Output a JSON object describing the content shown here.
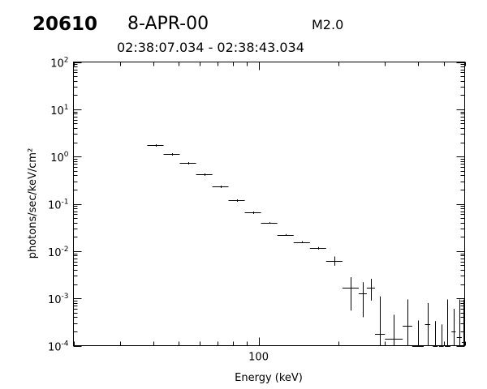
{
  "header": {
    "event_id": "20610",
    "date": "8-APR-00",
    "goes_class": "M2.0",
    "time_range": "02:38:07.034 - 02:38:43.034"
  },
  "chart_data": {
    "type": "scatter",
    "title": "",
    "xlabel": "Energy (keV)",
    "ylabel": "photons/sec/keV/cm²",
    "x_scale": "log",
    "y_scale": "log",
    "xlim": [
      20,
      600
    ],
    "ylim": [
      0.0001,
      100
    ],
    "x_tick_labels": [
      {
        "value": 100,
        "label": "100"
      }
    ],
    "y_tick_labels": [
      {
        "value": 100,
        "mant": "10",
        "exp": "2"
      },
      {
        "value": 10,
        "mant": "10",
        "exp": "1"
      },
      {
        "value": 1,
        "mant": "10",
        "exp": "0"
      },
      {
        "value": 0.1,
        "mant": "10",
        "exp": "-1"
      },
      {
        "value": 0.01,
        "mant": "10",
        "exp": "-2"
      },
      {
        "value": 0.001,
        "mant": "10",
        "exp": "-3"
      },
      {
        "value": 0.0001,
        "mant": "10",
        "exp": "-4"
      }
    ],
    "grid": false,
    "points": [
      {
        "x_lo": 38.0,
        "x_hi": 43.8,
        "y": 1.75,
        "y_lo": 1.75,
        "y_hi": 1.75
      },
      {
        "x_lo": 43.8,
        "x_hi": 50.4,
        "y": 1.15,
        "y_lo": 1.15,
        "y_hi": 1.15
      },
      {
        "x_lo": 50.4,
        "x_hi": 58.1,
        "y": 0.74,
        "y_lo": 0.74,
        "y_hi": 0.74
      },
      {
        "x_lo": 58.1,
        "x_hi": 66.9,
        "y": 0.43,
        "y_lo": 0.43,
        "y_hi": 0.43
      },
      {
        "x_lo": 66.9,
        "x_hi": 77.0,
        "y": 0.23,
        "y_lo": 0.23,
        "y_hi": 0.23
      },
      {
        "x_lo": 77.0,
        "x_hi": 88.7,
        "y": 0.12,
        "y_lo": 0.12,
        "y_hi": 0.12
      },
      {
        "x_lo": 88.7,
        "x_hi": 102.2,
        "y": 0.065,
        "y_lo": 0.064,
        "y_hi": 0.066
      },
      {
        "x_lo": 102.2,
        "x_hi": 117.7,
        "y": 0.04,
        "y_lo": 0.039,
        "y_hi": 0.041
      },
      {
        "x_lo": 117.7,
        "x_hi": 135.6,
        "y": 0.022,
        "y_lo": 0.021,
        "y_hi": 0.023
      },
      {
        "x_lo": 135.6,
        "x_hi": 156.2,
        "y": 0.0155,
        "y_lo": 0.0148,
        "y_hi": 0.0162
      },
      {
        "x_lo": 156.2,
        "x_hi": 179.9,
        "y": 0.0115,
        "y_lo": 0.0108,
        "y_hi": 0.0122
      },
      {
        "x_lo": 179.9,
        "x_hi": 207.2,
        "y": 0.0062,
        "y_lo": 0.0049,
        "y_hi": 0.0077
      },
      {
        "x_lo": 207.2,
        "x_hi": 238.7,
        "y": 0.0017,
        "y_lo": 0.00055,
        "y_hi": 0.0028
      },
      {
        "x_lo": 238.7,
        "x_hi": 256.0,
        "y": 0.0013,
        "y_lo": 0.0004,
        "y_hi": 0.0022
      },
      {
        "x_lo": 256.0,
        "x_hi": 275.0,
        "y": 0.0017,
        "y_lo": 0.0009,
        "y_hi": 0.0026
      },
      {
        "x_lo": 275.0,
        "x_hi": 300.0,
        "y": 0.00018,
        "y_lo": 0.0001,
        "y_hi": 0.0011
      },
      {
        "x_lo": 300.0,
        "x_hi": 350.0,
        "y": 0.00014,
        "y_lo": 0.0001,
        "y_hi": 0.00045
      },
      {
        "x_lo": 350.0,
        "x_hi": 380.0,
        "y": 0.00026,
        "y_lo": 0.0001,
        "y_hi": 0.00095
      },
      {
        "x_lo": 380.0,
        "x_hi": 420.0,
        "y": 0.0001,
        "y_lo": 0.0001,
        "y_hi": 0.00034
      },
      {
        "x_lo": 425.0,
        "x_hi": 445.0,
        "y": 0.00028,
        "y_lo": 0.0001,
        "y_hi": 0.0008
      },
      {
        "x_lo": 455.0,
        "x_hi": 475.0,
        "y": 0.0001,
        "y_lo": 0.0001,
        "y_hi": 0.00033
      },
      {
        "x_lo": 480.0,
        "x_hi": 500.0,
        "y": 0.0001,
        "y_lo": 0.0001,
        "y_hi": 0.00028
      },
      {
        "x_lo": 505.0,
        "x_hi": 530.0,
        "y": 0.0001,
        "y_lo": 0.0001,
        "y_hi": 0.00095
      },
      {
        "x_lo": 535.0,
        "x_hi": 555.0,
        "y": 0.0002,
        "y_lo": 0.0001,
        "y_hi": 0.0006
      },
      {
        "x_lo": 560.0,
        "x_hi": 585.0,
        "y": 0.00015,
        "y_lo": 0.0001,
        "y_hi": 0.00095
      },
      {
        "x_lo": 585.0,
        "x_hi": 600.0,
        "y": 0.00012,
        "y_lo": 0.0001,
        "y_hi": 0.00095
      }
    ]
  }
}
